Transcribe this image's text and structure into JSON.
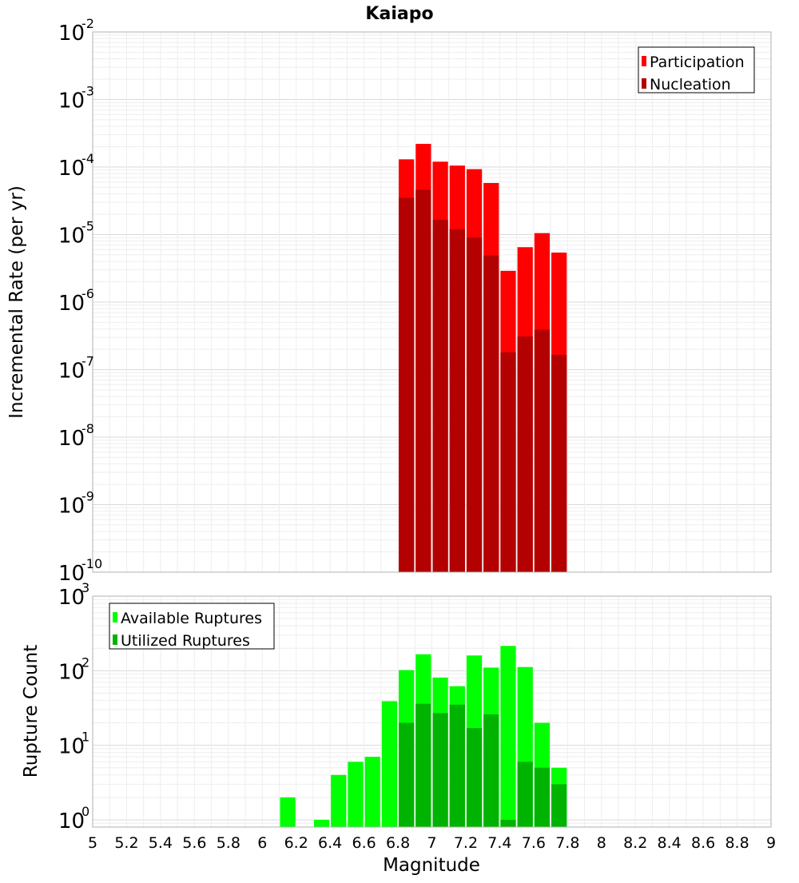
{
  "chart_data": [
    {
      "type": "bar",
      "title": "Kaiapo",
      "ylabel": "Incremental Rate (per yr)",
      "yscale": "log",
      "ylim": [
        1e-10,
        0.01
      ],
      "y_ticks": [
        {
          "base": "10",
          "exp": "-10"
        },
        {
          "base": "10",
          "exp": "-9"
        },
        {
          "base": "10",
          "exp": "-8"
        },
        {
          "base": "10",
          "exp": "-7"
        },
        {
          "base": "10",
          "exp": "-6"
        },
        {
          "base": "10",
          "exp": "-5"
        },
        {
          "base": "10",
          "exp": "-4"
        },
        {
          "base": "10",
          "exp": "-3"
        },
        {
          "base": "10",
          "exp": "-2"
        }
      ],
      "bin_width": 0.1,
      "legend": {
        "position": "top-right",
        "entries": [
          "Participation",
          "Nucleation"
        ]
      },
      "colors": {
        "Participation": "#ff0000",
        "Nucleation": "#b30000"
      },
      "grid": true,
      "x": [
        6.85,
        6.95,
        7.05,
        7.15,
        7.25,
        7.35,
        7.45,
        7.55,
        7.65,
        7.75
      ],
      "series": [
        {
          "name": "Participation",
          "values": [
            0.00013,
            0.00022,
            0.00012,
            0.000105,
            9.3e-05,
            5.8e-05,
            2.9e-06,
            6.5e-06,
            1.05e-05,
            5.4e-06
          ]
        },
        {
          "name": "Nucleation",
          "values": [
            3.5e-05,
            4.6e-05,
            1.65e-05,
            1.2e-05,
            9e-06,
            4.9e-06,
            1.8e-07,
            3.1e-07,
            3.9e-07,
            1.65e-07
          ]
        }
      ]
    },
    {
      "type": "bar",
      "xlabel": "Magnitude",
      "ylabel": "Rupture Count",
      "yscale": "log",
      "ylim": [
        0.8,
        1000
      ],
      "y_ticks": [
        {
          "base": "10",
          "exp": "0"
        },
        {
          "base": "10",
          "exp": "1"
        },
        {
          "base": "10",
          "exp": "2"
        },
        {
          "base": "10",
          "exp": "3"
        }
      ],
      "xlim": [
        5,
        9
      ],
      "x_ticks": [
        "5",
        "5.2",
        "5.4",
        "5.6",
        "5.8",
        "6",
        "6.2",
        "6.4",
        "6.6",
        "6.8",
        "7",
        "7.2",
        "7.4",
        "7.6",
        "7.8",
        "8",
        "8.2",
        "8.4",
        "8.6",
        "8.8",
        "9"
      ],
      "bin_width": 0.1,
      "legend": {
        "position": "top-left",
        "entries": [
          "Available Ruptures",
          "Utilized Ruptures"
        ]
      },
      "colors": {
        "Available Ruptures": "#00ff00",
        "Utilized Ruptures": "#00b300"
      },
      "grid": true,
      "x": [
        6.15,
        6.35,
        6.45,
        6.55,
        6.65,
        6.75,
        6.85,
        6.95,
        7.05,
        7.15,
        7.25,
        7.35,
        7.45,
        7.55,
        7.65,
        7.75
      ],
      "series": [
        {
          "name": "Available Ruptures",
          "values": [
            2,
            1,
            4,
            6,
            7,
            39,
            102,
            166,
            81,
            62,
            160,
            110,
            215,
            112,
            20,
            5
          ]
        },
        {
          "name": "Utilized Ruptures",
          "values": [
            null,
            null,
            null,
            null,
            null,
            null,
            20,
            36,
            27,
            35,
            17,
            26,
            1,
            6,
            5,
            3
          ]
        }
      ]
    }
  ]
}
